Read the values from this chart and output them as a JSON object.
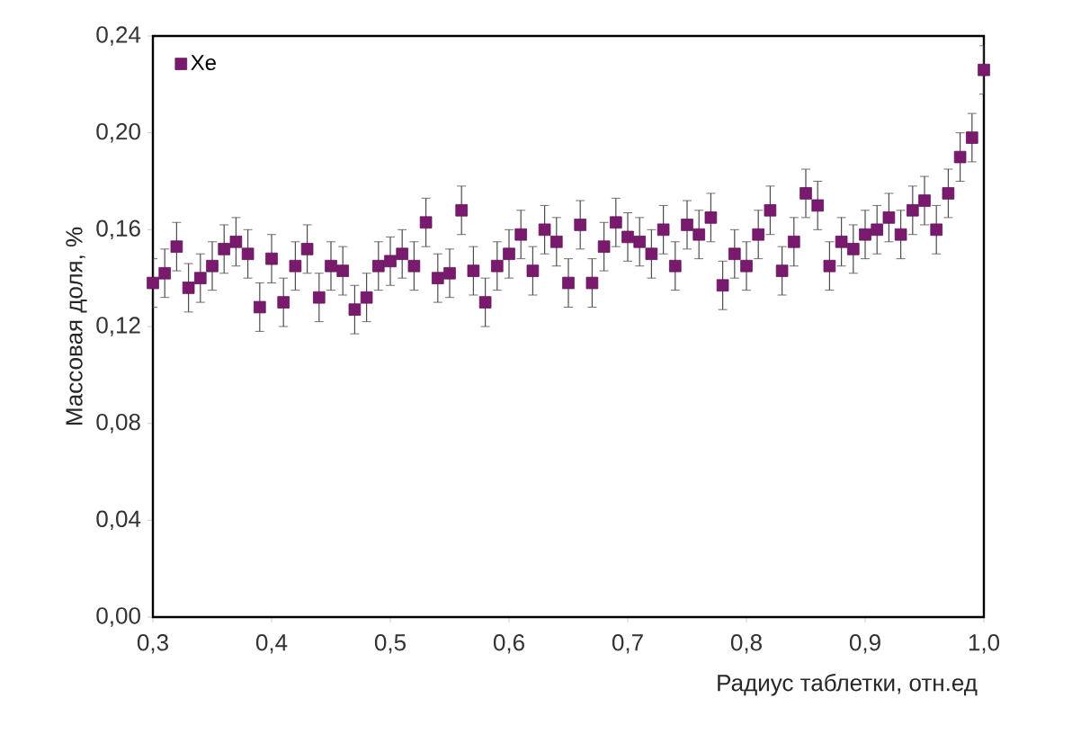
{
  "chart_data": {
    "type": "scatter",
    "xlabel": "Радиус таблетки, отн.ед",
    "ylabel": "Массовая доля, %",
    "x": [
      0.3,
      0.31,
      0.32,
      0.33,
      0.34,
      0.35,
      0.36,
      0.37,
      0.38,
      0.39,
      0.4,
      0.41,
      0.42,
      0.43,
      0.44,
      0.45,
      0.46,
      0.47,
      0.48,
      0.49,
      0.5,
      0.51,
      0.52,
      0.53,
      0.54,
      0.55,
      0.56,
      0.57,
      0.58,
      0.59,
      0.6,
      0.61,
      0.62,
      0.63,
      0.64,
      0.65,
      0.66,
      0.67,
      0.68,
      0.69,
      0.7,
      0.71,
      0.72,
      0.73,
      0.74,
      0.75,
      0.76,
      0.77,
      0.78,
      0.79,
      0.8,
      0.81,
      0.82,
      0.83,
      0.84,
      0.85,
      0.86,
      0.87,
      0.88,
      0.89,
      0.9,
      0.91,
      0.92,
      0.93,
      0.94,
      0.95,
      0.96,
      0.97,
      0.98,
      0.99,
      1.0
    ],
    "series": [
      {
        "name": "Xe",
        "color": "#7a1a6e",
        "values": [
          0.138,
          0.142,
          0.153,
          0.136,
          0.14,
          0.145,
          0.152,
          0.155,
          0.15,
          0.128,
          0.148,
          0.13,
          0.145,
          0.152,
          0.132,
          0.145,
          0.143,
          0.127,
          0.132,
          0.145,
          0.147,
          0.15,
          0.145,
          0.163,
          0.14,
          0.142,
          0.168,
          0.143,
          0.13,
          0.145,
          0.15,
          0.158,
          0.143,
          0.16,
          0.155,
          0.138,
          0.162,
          0.138,
          0.153,
          0.163,
          0.157,
          0.155,
          0.15,
          0.16,
          0.145,
          0.162,
          0.158,
          0.165,
          0.137,
          0.15,
          0.145,
          0.158,
          0.168,
          0.143,
          0.155,
          0.175,
          0.17,
          0.145,
          0.155,
          0.152,
          0.158,
          0.16,
          0.165,
          0.158,
          0.168,
          0.172,
          0.16,
          0.175,
          0.19,
          0.198,
          0.226
        ],
        "errors": [
          0.01,
          0.01,
          0.01,
          0.01,
          0.01,
          0.01,
          0.01,
          0.01,
          0.01,
          0.01,
          0.01,
          0.01,
          0.01,
          0.01,
          0.01,
          0.01,
          0.01,
          0.01,
          0.01,
          0.01,
          0.01,
          0.01,
          0.01,
          0.01,
          0.01,
          0.01,
          0.01,
          0.01,
          0.01,
          0.01,
          0.01,
          0.01,
          0.01,
          0.01,
          0.01,
          0.01,
          0.01,
          0.01,
          0.01,
          0.01,
          0.01,
          0.01,
          0.01,
          0.01,
          0.01,
          0.01,
          0.01,
          0.01,
          0.01,
          0.01,
          0.01,
          0.01,
          0.01,
          0.01,
          0.01,
          0.01,
          0.01,
          0.01,
          0.01,
          0.01,
          0.01,
          0.01,
          0.01,
          0.01,
          0.01,
          0.01,
          0.01,
          0.01,
          0.01,
          0.01,
          0.01
        ]
      }
    ],
    "xlim": [
      0.3,
      1.0
    ],
    "xticks": [
      {
        "value": 0.3,
        "label": "0,3"
      },
      {
        "value": 0.4,
        "label": "0,4"
      },
      {
        "value": 0.5,
        "label": "0,5"
      },
      {
        "value": 0.6,
        "label": "0,6"
      },
      {
        "value": 0.7,
        "label": "0,7"
      },
      {
        "value": 0.8,
        "label": "0,8"
      },
      {
        "value": 0.9,
        "label": "0,9"
      },
      {
        "value": 1.0,
        "label": "1,0"
      }
    ],
    "ylim": [
      0,
      0.24
    ],
    "yticks": [
      {
        "value": 0,
        "label": "0,00"
      },
      {
        "value": 0.04,
        "label": "0,04"
      },
      {
        "value": 0.08,
        "label": "0,08"
      },
      {
        "value": 0.12,
        "label": "0,12"
      },
      {
        "value": 0.16,
        "label": "0,16"
      },
      {
        "value": 0.2,
        "label": "0,20"
      },
      {
        "value": 0.24,
        "label": "0,24"
      }
    ],
    "grid": false,
    "legend": "top left",
    "marker": "square"
  }
}
